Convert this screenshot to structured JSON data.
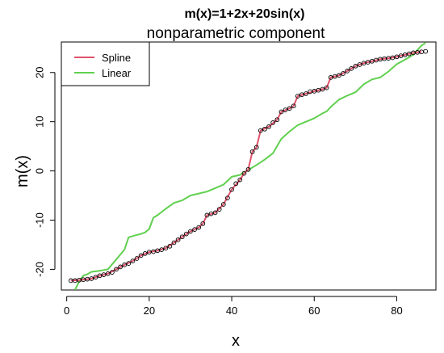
{
  "chart_data": {
    "type": "line",
    "title": "m(x)=1+2x+20sin(x)",
    "subtitle": "nonparametric component",
    "xlabel": "x",
    "ylabel": "m(x)",
    "xlim": [
      -1.3,
      89.5
    ],
    "ylim": [
      -24.2,
      26.2
    ],
    "xticks": [
      0,
      20,
      40,
      60,
      80
    ],
    "yticks": [
      -20,
      -10,
      0,
      10,
      20
    ],
    "xtick_labels": [
      "0",
      "20",
      "40",
      "60",
      "80"
    ],
    "ytick_labels": [
      "-20",
      "-10",
      "0",
      "10",
      "20"
    ],
    "grid": false,
    "legend": {
      "position": "top-left"
    },
    "colors": {
      "spline": "#DF536B",
      "linear": "#61D04F",
      "points": "#000000"
    },
    "points": {
      "x": [
        1,
        2,
        3,
        4,
        5,
        6,
        7,
        8,
        9,
        10,
        11,
        12,
        13,
        14,
        15,
        16,
        17,
        18,
        19,
        20,
        21,
        22,
        23,
        24,
        25,
        26,
        27,
        28,
        29,
        30,
        31,
        32,
        33,
        34,
        35,
        36,
        37,
        38,
        39,
        40,
        41,
        42,
        43,
        44,
        45,
        46,
        47,
        48,
        49,
        50,
        51,
        52,
        53,
        54,
        55,
        56,
        57,
        58,
        59,
        60,
        61,
        62,
        63,
        64,
        65,
        66,
        67,
        68,
        69,
        70,
        71,
        72,
        73,
        74,
        75,
        76,
        77,
        78,
        79,
        80,
        81,
        82,
        83,
        84,
        85,
        86,
        87
      ],
      "y": [
        -22.3,
        -22.3,
        -22.2,
        -22.1,
        -22.0,
        -21.9,
        -21.6,
        -21.3,
        -21.1,
        -20.9,
        -20.6,
        -20.0,
        -19.5,
        -19.1,
        -18.8,
        -18.3,
        -17.8,
        -17.2,
        -16.8,
        -16.5,
        -16.4,
        -16.2,
        -16.0,
        -15.7,
        -15.3,
        -14.6,
        -14.0,
        -13.4,
        -12.8,
        -12.3,
        -11.9,
        -11.5,
        -10.7,
        -9.0,
        -8.7,
        -8.5,
        -7.8,
        -6.8,
        -5.5,
        -3.8,
        -2.6,
        -1.8,
        -0.5,
        0.3,
        3.9,
        4.8,
        8.2,
        8.5,
        9.0,
        9.8,
        10.4,
        12.0,
        12.4,
        12.7,
        13.2,
        15.2,
        15.5,
        15.7,
        16.1,
        16.2,
        16.4,
        16.6,
        16.9,
        19.0,
        19.2,
        19.4,
        19.8,
        20.3,
        20.8,
        21.3,
        21.6,
        21.9,
        22.1,
        22.3,
        22.5,
        22.7,
        22.8,
        22.9,
        23.0,
        23.2,
        23.4,
        23.6,
        23.8,
        24.0,
        24.1,
        24.2,
        24.3
      ]
    },
    "series": [
      {
        "name": "Spline",
        "x": [
          1,
          3,
          5,
          6,
          7,
          8,
          10,
          12,
          14,
          16,
          18,
          20,
          22,
          24,
          26,
          28,
          30,
          32,
          33,
          34,
          36,
          38,
          40,
          42,
          43,
          44,
          45,
          46,
          47,
          49,
          51,
          52,
          54,
          55,
          56,
          58,
          60,
          62,
          63,
          64,
          66,
          68,
          70,
          72,
          74,
          76,
          78,
          80,
          82,
          84,
          85,
          86
        ],
        "y": [
          -22.3,
          -22.2,
          -22.0,
          -21.9,
          -21.6,
          -21.3,
          -20.9,
          -20.0,
          -19.1,
          -18.3,
          -17.2,
          -16.5,
          -16.2,
          -15.7,
          -14.6,
          -13.4,
          -12.3,
          -11.5,
          -10.7,
          -9.0,
          -8.5,
          -6.8,
          -3.8,
          -1.8,
          -0.5,
          0.3,
          3.9,
          4.8,
          8.2,
          9.0,
          10.4,
          12.0,
          12.7,
          13.2,
          15.2,
          15.7,
          16.2,
          16.6,
          16.9,
          19.0,
          19.4,
          20.3,
          21.3,
          21.9,
          22.3,
          22.7,
          22.9,
          23.2,
          23.6,
          24.0,
          24.1,
          24.2
        ]
      },
      {
        "name": "Linear",
        "x": [
          2,
          3,
          4,
          5,
          6,
          8,
          10,
          12,
          13,
          14,
          15,
          17,
          18,
          19,
          20,
          21,
          22,
          24,
          26,
          28,
          30,
          32,
          34,
          36,
          38,
          40,
          42,
          44,
          46,
          48,
          50,
          52,
          54,
          56,
          58,
          60,
          62,
          63,
          64,
          66,
          68,
          70,
          72,
          74,
          76,
          78,
          80,
          82,
          84,
          86,
          87
        ],
        "y": [
          -24.2,
          -22.5,
          -21.3,
          -21.0,
          -20.5,
          -20.3,
          -20.0,
          -18.0,
          -17.0,
          -16.0,
          -13.5,
          -13.0,
          -12.8,
          -12.5,
          -11.8,
          -9.5,
          -9.0,
          -7.7,
          -6.5,
          -6.0,
          -5.0,
          -4.6,
          -4.2,
          -3.5,
          -2.8,
          -1.2,
          -0.8,
          0.2,
          1.2,
          2.3,
          3.6,
          6.5,
          8.0,
          9.3,
          10.0,
          10.7,
          11.7,
          12.1,
          13.0,
          14.5,
          15.3,
          16.0,
          17.6,
          18.6,
          19.0,
          20.2,
          21.7,
          22.6,
          23.6,
          25.5,
          26.0
        ]
      }
    ]
  }
}
